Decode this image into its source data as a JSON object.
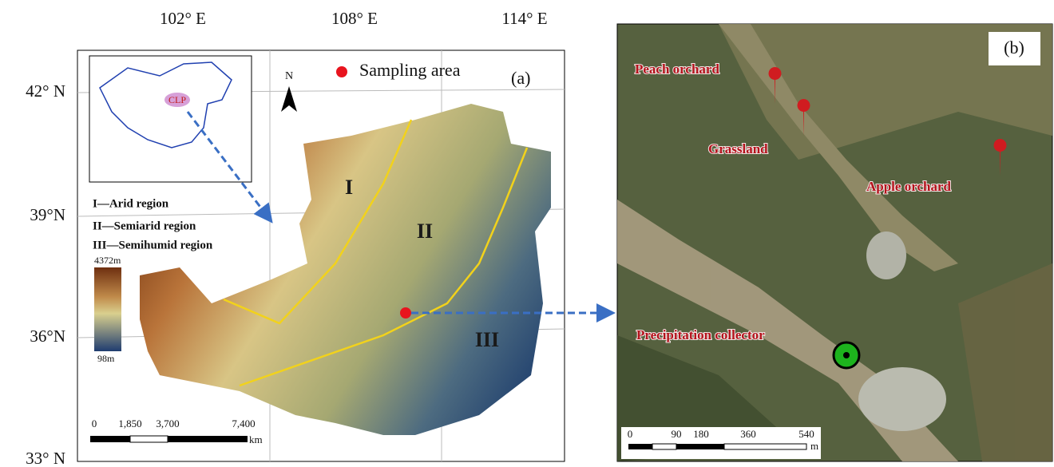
{
  "panel_a": {
    "label": "(a)",
    "longitudes": [
      "102° E",
      "108° E",
      "114° E"
    ],
    "latitudes": [
      "42° N",
      "39°N",
      "36°N",
      "33° N"
    ],
    "legend": "Sampling area",
    "north": "N",
    "inset_label": "CLP",
    "regions_legend": [
      "I—Arid region",
      "II—Semiarid region",
      "III—Semihumid region"
    ],
    "colorbar": {
      "max": "4372m",
      "min": "98m"
    },
    "region_labels": [
      "I",
      "II",
      "III"
    ],
    "scale": {
      "ticks": [
        "0",
        "1,850",
        "3,700",
        "7,400"
      ],
      "unit": "km"
    }
  },
  "panel_b": {
    "label": "(b)",
    "sites": [
      "Peach orchard",
      "Grassland",
      "Apple orchard",
      "Precipitation collector"
    ],
    "scale": {
      "ticks": [
        "0",
        "90",
        "180",
        "360",
        "540"
      ],
      "unit": "m"
    }
  }
}
